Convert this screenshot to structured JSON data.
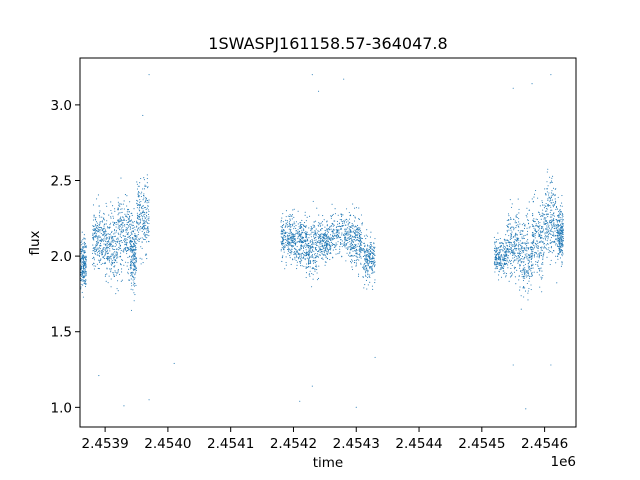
{
  "chart_data": {
    "type": "scatter",
    "title": "1SWASPJ161158.57-364047.8",
    "xlabel": "time",
    "ylabel": "flux",
    "x_offset_label": "1e6",
    "xlim": [
      2.45386,
      2.45465
    ],
    "ylim": [
      0.87,
      3.31
    ],
    "x_ticks": [
      2.4539,
      2.454,
      2.4541,
      2.4542,
      2.4543,
      2.4544,
      2.4545,
      2.4546
    ],
    "x_tick_labels": [
      "2.4539",
      "2.4540",
      "2.4541",
      "2.4542",
      "2.4543",
      "2.4544",
      "2.4545",
      "2.4546"
    ],
    "y_ticks": [
      1.0,
      1.5,
      2.0,
      2.5,
      3.0
    ],
    "y_tick_labels": [
      "1.0",
      "1.5",
      "2.0",
      "2.5",
      "3.0"
    ],
    "grid": false,
    "marker_color": "#1f77b4",
    "series": [
      {
        "clusters": [
          {
            "x": [
              2.45386,
              2.45387
            ],
            "y_center": 1.95,
            "y_spread": 0.35
          },
          {
            "x": [
              2.45388,
              2.4539
            ],
            "y_center": 2.12,
            "y_spread": 0.45
          },
          {
            "x": [
              2.4539,
              2.45392
            ],
            "y_center": 2.05,
            "y_spread": 0.5
          },
          {
            "x": [
              2.45392,
              2.45394
            ],
            "y_center": 2.15,
            "y_spread": 0.55
          },
          {
            "x": [
              2.45394,
              2.45395
            ],
            "y_center": 2.02,
            "y_spread": 0.45
          },
          {
            "x": [
              2.45395,
              2.45397
            ],
            "y_center": 2.25,
            "y_spread": 0.5
          },
          {
            "x": [
              2.45418,
              2.4542
            ],
            "y_center": 2.12,
            "y_spread": 0.3
          },
          {
            "x": [
              2.4542,
              2.45422
            ],
            "y_center": 2.1,
            "y_spread": 0.32
          },
          {
            "x": [
              2.45422,
              2.45424
            ],
            "y_center": 2.05,
            "y_spread": 0.4
          },
          {
            "x": [
              2.45424,
              2.45426
            ],
            "y_center": 2.1,
            "y_spread": 0.3
          },
          {
            "x": [
              2.45426,
              2.45429
            ],
            "y_center": 2.15,
            "y_spread": 0.3
          },
          {
            "x": [
              2.45429,
              2.45431
            ],
            "y_center": 2.1,
            "y_spread": 0.35
          },
          {
            "x": [
              2.45431,
              2.45433
            ],
            "y_center": 1.98,
            "y_spread": 0.3
          },
          {
            "x": [
              2.45452,
              2.45454
            ],
            "y_center": 2.0,
            "y_spread": 0.25
          },
          {
            "x": [
              2.45454,
              2.45456
            ],
            "y_center": 2.08,
            "y_spread": 0.45
          },
          {
            "x": [
              2.45456,
              2.45458
            ],
            "y_center": 2.0,
            "y_spread": 0.55
          },
          {
            "x": [
              2.45458,
              2.4546
            ],
            "y_center": 2.12,
            "y_spread": 0.55
          },
          {
            "x": [
              2.4546,
              2.45462
            ],
            "y_center": 2.25,
            "y_spread": 0.55
          },
          {
            "x": [
              2.45462,
              2.45463
            ],
            "y_center": 2.15,
            "y_spread": 0.35
          }
        ],
        "outliers": [
          {
            "x": 2.45393,
            "y": 1.01
          },
          {
            "x": 2.45397,
            "y": 1.05
          },
          {
            "x": 2.45389,
            "y": 1.21
          },
          {
            "x": 2.45401,
            "y": 1.29
          },
          {
            "x": 2.45397,
            "y": 3.2
          },
          {
            "x": 2.45396,
            "y": 2.93
          },
          {
            "x": 2.45421,
            "y": 1.04
          },
          {
            "x": 2.45423,
            "y": 1.14
          },
          {
            "x": 2.4543,
            "y": 1.0
          },
          {
            "x": 2.45433,
            "y": 1.33
          },
          {
            "x": 2.45423,
            "y": 3.2
          },
          {
            "x": 2.45424,
            "y": 3.09
          },
          {
            "x": 2.45428,
            "y": 3.17
          },
          {
            "x": 2.45457,
            "y": 0.99
          },
          {
            "x": 2.45455,
            "y": 1.28
          },
          {
            "x": 2.45461,
            "y": 1.28
          },
          {
            "x": 2.45458,
            "y": 3.14
          },
          {
            "x": 2.45461,
            "y": 3.2
          },
          {
            "x": 2.45455,
            "y": 3.11
          }
        ]
      }
    ]
  }
}
